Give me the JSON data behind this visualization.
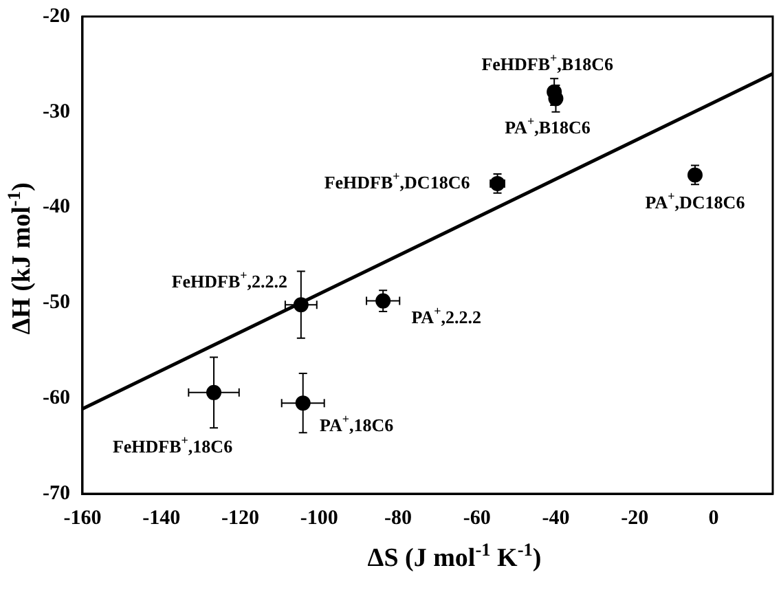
{
  "chart_data": {
    "type": "scatter",
    "xlabel": "ΔS (J mol$^{-1}$ K$^{-1}$)",
    "ylabel": "ΔH (kJ mol$^{-1}$)",
    "xlim": [
      -160,
      15
    ],
    "xticks": [
      -160,
      -140,
      -120,
      -100,
      -80,
      -60,
      -40,
      -20,
      0
    ],
    "ylim": [
      -70,
      -20
    ],
    "yticks": [
      -70,
      -60,
      -50,
      -40,
      -30,
      -20
    ],
    "grid": false,
    "legend": false,
    "marker": "circle",
    "series": [
      {
        "color": "#000000",
        "x": [
          -40.4,
          -40.0,
          -54.8,
          -4.7,
          -104.6,
          -83.8,
          -126.7,
          -104.1
        ],
        "values": [
          -27.9,
          -28.6,
          -37.5,
          -36.6,
          -50.2,
          -49.8,
          -59.4,
          -60.5
        ],
        "errors": [
          1.4,
          1.4,
          1.0,
          1.0,
          3.5,
          1.1,
          3.7,
          3.1
        ],
        "xerrors": [
          1.0,
          1.0,
          1.8,
          null,
          4.0,
          4.2,
          6.4,
          5.4
        ]
      },
      {
        "type": "line",
        "color": "#000000",
        "marker": "none",
        "x": [
          -160,
          15
        ],
        "values": [
          -61.1,
          -26.0
        ]
      }
    ],
    "annotations": [
      {
        "text": "FeHDFB$^{+}$,B18C6",
        "x": -40.4,
        "y": -27.9
      },
      {
        "text": "PA$^{+}$,B18C6",
        "x": -40.0,
        "y": -28.6
      },
      {
        "text": "FeHDFB$^{+}$,DC18C6",
        "x": -54.8,
        "y": -37.5
      },
      {
        "text": "PA$^{+}$,DC18C6",
        "x": -4.7,
        "y": -36.6
      },
      {
        "text": "FeHDFB$^{+}$,2.2.2",
        "x": -104.6,
        "y": -50.2
      },
      {
        "text": "PA$^{+}$,2.2.2",
        "x": -83.8,
        "y": -49.8
      },
      {
        "text": "FeHDFB$^{+}$,18C6",
        "x": -126.7,
        "y": -59.4
      },
      {
        "text": "PA$^{+}$,18C6",
        "x": -104.1,
        "y": -60.5
      }
    ]
  }
}
